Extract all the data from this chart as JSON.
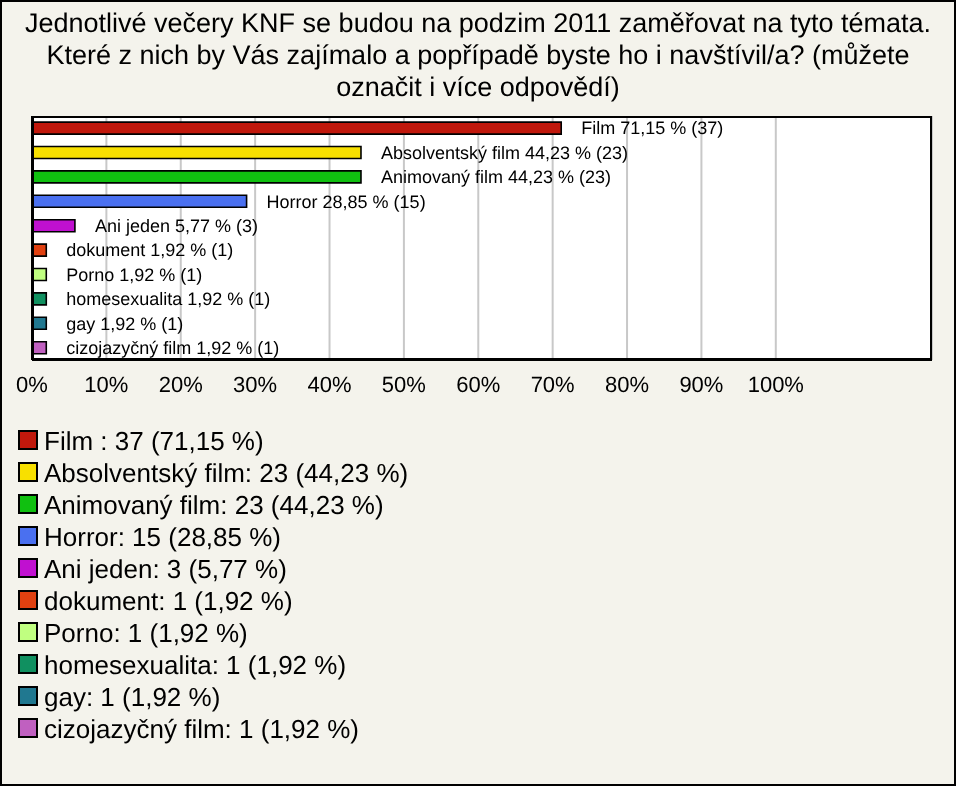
{
  "chart_data": {
    "type": "bar",
    "orientation": "horizontal",
    "title": "Jednotlivé večery KNF se budou na podzim 2011 zaměřovat na tyto témata. Které z nich by Vás zajímalo a popřípadě byste ho i navštívil/a? (můžete označit i více odpovědí)",
    "categories": [
      null,
      null,
      null,
      null,
      null,
      null,
      null,
      null,
      null,
      null
    ],
    "values": [
      71.15,
      44.23,
      44.23,
      28.85,
      5.77,
      1.92,
      1.92,
      1.92,
      1.92,
      1.92
    ],
    "colors": [
      "#c0180c",
      "#f8e000",
      "#10c010",
      "#4a70f0",
      "#c010d0",
      "#e04010",
      "#c0ff80",
      "#109060",
      "#207890",
      "#c060c0"
    ],
    "value_labels": [
      "Film  71,15 % (37)",
      "Absolventský film 44,23 % (23)",
      "Animovaný film 44,23 % (23)",
      "Horror 28,85 % (15)",
      "Ani jeden 5,77 % (3)",
      "dokument 1,92 % (1)",
      "Porno 1,92 % (1)",
      "homesexualita 1,92 % (1)",
      "gay 1,92 % (1)",
      "cizojazyčný film 1,92 % (1)"
    ],
    "annotations": [
      "Film : 37 (71,15 %)",
      "Absolventský film: 23 (44,23 %)",
      "Animovaný film: 23 (44,23 %)",
      "Horror: 15 (28,85 %)",
      "Ani jeden: 3 (5,77 %)",
      "dokument: 1 (1,92 %)",
      "Porno: 1 (1,92 %)",
      "homesexualita: 1 (1,92 %)",
      "gay: 1 (1,92 %)",
      "cizojazyčný film: 1 (1,92 %)"
    ],
    "xlim": [
      0,
      121
    ],
    "xticks": [
      {
        "value": 0,
        "label": "0%"
      },
      {
        "value": 10,
        "label": "10%"
      },
      {
        "value": 20,
        "label": "20%"
      },
      {
        "value": 30,
        "label": "30%"
      },
      {
        "value": 40,
        "label": "40%"
      },
      {
        "value": 50,
        "label": "50%"
      },
      {
        "value": 60,
        "label": "60%"
      },
      {
        "value": 70,
        "label": "70%"
      },
      {
        "value": 80,
        "label": "80%"
      },
      {
        "value": 90,
        "label": "90%"
      },
      {
        "value": 100,
        "label": "100%"
      }
    ],
    "grid": "x",
    "tick_labels": "x"
  }
}
